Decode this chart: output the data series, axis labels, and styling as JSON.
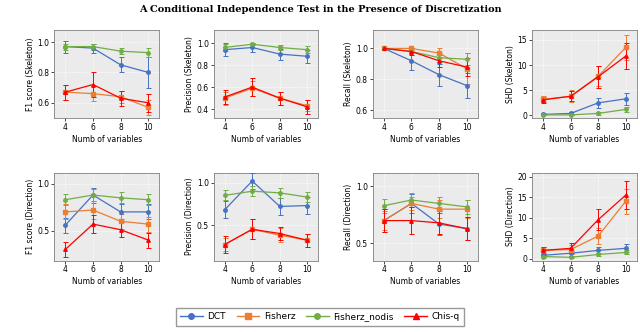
{
  "title": "A Conditional Independence Test in the Presence of Discretization",
  "x": [
    4,
    6,
    8,
    10
  ],
  "xlabel": "Numb of variables",
  "colors": {
    "DCT": "#4472C4",
    "Fisherz": "#ED7D31",
    "Fisherz_nodis": "#70AD47",
    "Chis-q": "#FF0000"
  },
  "markers": {
    "DCT": "o",
    "Fisherz": "s",
    "Fisherz_nodis": "o",
    "Chis-q": "^"
  },
  "skeleton": {
    "F1": {
      "DCT": {
        "mean": [
          0.97,
          0.96,
          0.85,
          0.8
        ],
        "err": [
          0.04,
          0.03,
          0.05,
          0.1
        ]
      },
      "Fisherz": {
        "mean": [
          0.67,
          0.66,
          0.64,
          0.57
        ],
        "err": [
          0.05,
          0.05,
          0.04,
          0.05
        ]
      },
      "Fisherz_nodis": {
        "mean": [
          0.97,
          0.97,
          0.94,
          0.93
        ],
        "err": [
          0.02,
          0.02,
          0.02,
          0.03
        ]
      },
      "Chis-q": {
        "mean": [
          0.67,
          0.72,
          0.63,
          0.6
        ],
        "err": [
          0.05,
          0.08,
          0.05,
          0.06
        ]
      }
    },
    "Precision": {
      "DCT": {
        "mean": [
          0.94,
          0.96,
          0.9,
          0.88
        ],
        "err": [
          0.06,
          0.04,
          0.05,
          0.06
        ]
      },
      "Fisherz": {
        "mean": [
          0.5,
          0.59,
          0.5,
          0.43
        ],
        "err": [
          0.06,
          0.07,
          0.06,
          0.05
        ]
      },
      "Fisherz_nodis": {
        "mean": [
          0.96,
          0.99,
          0.96,
          0.94
        ],
        "err": [
          0.03,
          0.01,
          0.02,
          0.03
        ]
      },
      "Chis-q": {
        "mean": [
          0.51,
          0.6,
          0.5,
          0.42
        ],
        "err": [
          0.06,
          0.08,
          0.06,
          0.06
        ]
      }
    },
    "Recall": {
      "DCT": {
        "mean": [
          1.0,
          0.92,
          0.83,
          0.76
        ],
        "err": [
          0.0,
          0.06,
          0.07,
          0.08
        ]
      },
      "Fisherz": {
        "mean": [
          1.0,
          1.0,
          0.97,
          0.87
        ],
        "err": [
          0.0,
          0.0,
          0.03,
          0.1
        ]
      },
      "Fisherz_nodis": {
        "mean": [
          1.0,
          0.98,
          0.94,
          0.93
        ],
        "err": [
          0.0,
          0.01,
          0.03,
          0.04
        ]
      },
      "Chis-q": {
        "mean": [
          1.0,
          0.98,
          0.92,
          0.88
        ],
        "err": [
          0.0,
          0.02,
          0.04,
          0.06
        ]
      }
    },
    "SHD": {
      "DCT": {
        "mean": [
          0.2,
          0.4,
          2.5,
          3.3
        ],
        "err": [
          0.2,
          0.3,
          1.0,
          1.2
        ]
      },
      "Fisherz": {
        "mean": [
          3.2,
          3.8,
          7.8,
          13.5
        ],
        "err": [
          0.6,
          1.2,
          2.0,
          2.5
        ]
      },
      "Fisherz_nodis": {
        "mean": [
          0.1,
          0.1,
          0.4,
          1.2
        ],
        "err": [
          0.1,
          0.1,
          0.3,
          0.5
        ]
      },
      "Chis-q": {
        "mean": [
          3.1,
          3.8,
          7.7,
          11.8
        ],
        "err": [
          0.6,
          1.0,
          2.2,
          2.5
        ]
      }
    }
  },
  "direction": {
    "F1": {
      "DCT": {
        "mean": [
          0.56,
          0.88,
          0.7,
          0.7
        ],
        "err": [
          0.08,
          0.08,
          0.08,
          0.08
        ]
      },
      "Fisherz": {
        "mean": [
          0.7,
          0.72,
          0.6,
          0.57
        ],
        "err": [
          0.08,
          0.1,
          0.08,
          0.08
        ]
      },
      "Fisherz_nodis": {
        "mean": [
          0.83,
          0.88,
          0.85,
          0.83
        ],
        "err": [
          0.06,
          0.06,
          0.06,
          0.06
        ]
      },
      "Chis-q": {
        "mean": [
          0.3,
          0.57,
          0.51,
          0.4
        ],
        "err": [
          0.08,
          0.1,
          0.08,
          0.08
        ]
      }
    },
    "Precision": {
      "DCT": {
        "mean": [
          0.68,
          1.02,
          0.72,
          0.73
        ],
        "err": [
          0.1,
          0.1,
          0.1,
          0.1
        ]
      },
      "Fisherz": {
        "mean": [
          0.27,
          0.45,
          0.38,
          0.32
        ],
        "err": [
          0.08,
          0.12,
          0.08,
          0.08
        ]
      },
      "Fisherz_nodis": {
        "mean": [
          0.85,
          0.9,
          0.88,
          0.83
        ],
        "err": [
          0.06,
          0.06,
          0.06,
          0.06
        ]
      },
      "Chis-q": {
        "mean": [
          0.27,
          0.45,
          0.4,
          0.32
        ],
        "err": [
          0.1,
          0.12,
          0.08,
          0.08
        ]
      }
    },
    "Recall": {
      "DCT": {
        "mean": [
          0.7,
          0.85,
          0.67,
          0.63
        ],
        "err": [
          0.1,
          0.08,
          0.1,
          0.1
        ]
      },
      "Fisherz": {
        "mean": [
          0.7,
          0.85,
          0.8,
          0.8
        ],
        "err": [
          0.08,
          0.06,
          0.08,
          0.08
        ]
      },
      "Fisherz_nodis": {
        "mean": [
          0.83,
          0.88,
          0.85,
          0.82
        ],
        "err": [
          0.06,
          0.06,
          0.06,
          0.06
        ]
      },
      "Chis-q": {
        "mean": [
          0.7,
          0.7,
          0.68,
          0.63
        ],
        "err": [
          0.1,
          0.12,
          0.1,
          0.1
        ]
      }
    },
    "SHD": {
      "DCT": {
        "mean": [
          0.8,
          1.3,
          2.0,
          2.5
        ],
        "err": [
          0.5,
          0.6,
          0.8,
          1.0
        ]
      },
      "Fisherz": {
        "mean": [
          2.0,
          2.2,
          5.5,
          14.0
        ],
        "err": [
          0.8,
          1.0,
          2.0,
          3.0
        ]
      },
      "Fisherz_nodis": {
        "mean": [
          0.5,
          0.3,
          1.0,
          1.5
        ],
        "err": [
          0.3,
          0.2,
          0.4,
          0.5
        ]
      },
      "Chis-q": {
        "mean": [
          2.0,
          2.5,
          9.5,
          15.5
        ],
        "err": [
          0.8,
          1.2,
          2.5,
          3.5
        ]
      }
    }
  },
  "ylims": {
    "skeleton_F1": [
      0.5,
      1.08
    ],
    "skeleton_Precision": [
      0.32,
      1.12
    ],
    "skeleton_Recall": [
      0.55,
      1.12
    ],
    "skeleton_SHD": [
      -0.5,
      17
    ],
    "direction_F1": [
      0.18,
      1.12
    ],
    "direction_Precision": [
      0.08,
      1.12
    ],
    "direction_Recall": [
      0.35,
      1.12
    ],
    "direction_SHD": [
      -0.5,
      21
    ]
  },
  "yticks": {
    "skeleton_F1": [
      0.6,
      0.8,
      1.0
    ],
    "skeleton_Precision": [
      0.4,
      0.6,
      0.8,
      1.0
    ],
    "skeleton_Recall": [
      0.6,
      0.8,
      1.0
    ],
    "skeleton_SHD": [
      0,
      5,
      10,
      15
    ],
    "direction_F1": [
      0.5,
      1.0
    ],
    "direction_Precision": [
      0.5,
      1.0
    ],
    "direction_Recall": [
      0.5,
      1.0
    ],
    "direction_SHD": [
      0,
      5,
      10,
      15,
      20
    ]
  },
  "ylabels": {
    "skeleton": [
      "F1 score (Skeleton)",
      "Precision (Skeleton)",
      "Recall (Skeleton)",
      "SHD (Skeleton)"
    ],
    "direction": [
      "F1 score (Direction)",
      "Precision (Direction)",
      "Recall (Direction)",
      "SHD (Direction)"
    ]
  }
}
